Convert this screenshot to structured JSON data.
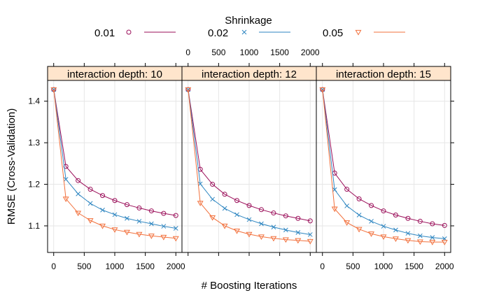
{
  "chart_data": {
    "type": "line",
    "title": "",
    "legend": {
      "title": "Shrinkage",
      "placement": "top",
      "entries": [
        {
          "label": "0.01",
          "color": "#9b0f5a",
          "marker": "circle"
        },
        {
          "label": "0.02",
          "color": "#2e86c1",
          "marker": "x"
        },
        {
          "label": "0.05",
          "color": "#f2713d",
          "marker": "triangle-down"
        }
      ]
    },
    "xlabel": "# Boosting Iterations",
    "ylabel": "RMSE (Cross-Validation)",
    "xlim": [
      -100,
      2100
    ],
    "ylim": [
      1.036,
      1.45
    ],
    "xticks": [
      0,
      500,
      1000,
      1500,
      2000
    ],
    "xtick_labels": [
      "0",
      "500",
      "1000",
      "1500",
      "2000"
    ],
    "yticks": [
      1.1,
      1.2,
      1.3,
      1.4
    ],
    "ytick_labels": [
      "1.1",
      "1.2",
      "1.3",
      "1.4"
    ],
    "grid": true,
    "x": [
      1,
      200,
      400,
      600,
      800,
      1000,
      1200,
      1400,
      1600,
      1800,
      2000
    ],
    "panels": [
      {
        "label": "interaction depth: 10",
        "series": [
          {
            "name": "0.01",
            "values": [
              1.428,
              1.243,
              1.209,
              1.188,
              1.173,
              1.161,
              1.151,
              1.143,
              1.136,
              1.13,
              1.125
            ]
          },
          {
            "name": "0.02",
            "values": [
              1.428,
              1.212,
              1.177,
              1.154,
              1.138,
              1.127,
              1.118,
              1.111,
              1.105,
              1.099,
              1.094
            ]
          },
          {
            "name": "0.05",
            "values": [
              1.428,
              1.165,
              1.131,
              1.113,
              1.1,
              1.091,
              1.085,
              1.08,
              1.076,
              1.073,
              1.07
            ]
          }
        ]
      },
      {
        "label": "interaction depth: 12",
        "series": [
          {
            "name": "0.01",
            "values": [
              1.428,
              1.236,
              1.2,
              1.176,
              1.161,
              1.149,
              1.139,
              1.131,
              1.124,
              1.118,
              1.112
            ]
          },
          {
            "name": "0.02",
            "values": [
              1.428,
              1.201,
              1.164,
              1.142,
              1.127,
              1.115,
              1.105,
              1.097,
              1.09,
              1.084,
              1.079
            ]
          },
          {
            "name": "0.05",
            "values": [
              1.428,
              1.155,
              1.12,
              1.1,
              1.088,
              1.08,
              1.074,
              1.07,
              1.067,
              1.065,
              1.063
            ]
          }
        ]
      },
      {
        "label": "interaction depth: 15",
        "series": [
          {
            "name": "0.01",
            "values": [
              1.428,
              1.227,
              1.188,
              1.165,
              1.149,
              1.136,
              1.126,
              1.118,
              1.111,
              1.105,
              1.101
            ]
          },
          {
            "name": "0.02",
            "values": [
              1.428,
              1.187,
              1.148,
              1.126,
              1.111,
              1.099,
              1.09,
              1.082,
              1.076,
              1.072,
              1.069
            ]
          },
          {
            "name": "0.05",
            "values": [
              1.428,
              1.141,
              1.108,
              1.092,
              1.081,
              1.074,
              1.069,
              1.065,
              1.062,
              1.061,
              1.061
            ]
          }
        ]
      }
    ]
  }
}
